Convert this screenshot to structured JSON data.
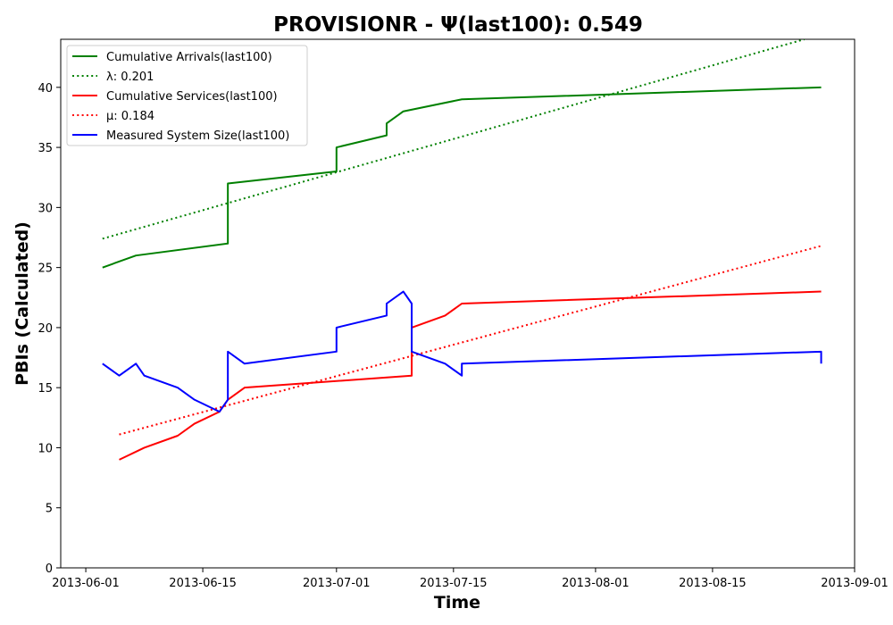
{
  "chart_data": {
    "type": "line",
    "title": "PROVISIONR -  Ψ(last100): 0.549",
    "xlabel": "Time",
    "ylabel": "PBIs (Calculated)",
    "xlim": [
      "2013-05-29",
      "2013-09-01"
    ],
    "ylim": [
      0,
      44
    ],
    "x_ticks": [
      "2013-06-01",
      "2013-06-15",
      "2013-07-01",
      "2013-07-15",
      "2013-08-01",
      "2013-08-15",
      "2013-09-01"
    ],
    "y_ticks": [
      0,
      5,
      10,
      15,
      20,
      25,
      30,
      35,
      40
    ],
    "grid": false,
    "legend_position": "top-left",
    "series": [
      {
        "name": "Cumulative Arrivals(last100)",
        "color": "#008000",
        "style": "solid",
        "points": [
          [
            "2013-06-03",
            25
          ],
          [
            "2013-06-07",
            26
          ],
          [
            "2013-06-18",
            27
          ],
          [
            "2013-06-18",
            28
          ],
          [
            "2013-06-18",
            32
          ],
          [
            "2013-07-01",
            33
          ],
          [
            "2013-07-01",
            35
          ],
          [
            "2013-07-07",
            36
          ],
          [
            "2013-07-07",
            37
          ],
          [
            "2013-07-09",
            38
          ],
          [
            "2013-07-16",
            39
          ],
          [
            "2013-08-28",
            40
          ]
        ]
      },
      {
        "name": "λ: 0.201",
        "color": "#008000",
        "style": "dotted",
        "points": [
          [
            "2013-06-03",
            27.4
          ],
          [
            "2013-08-26",
            44
          ]
        ]
      },
      {
        "name": "Cumulative Services(last100)",
        "color": "#ff0000",
        "style": "solid",
        "points": [
          [
            "2013-06-05",
            9
          ],
          [
            "2013-06-08",
            10
          ],
          [
            "2013-06-12",
            11
          ],
          [
            "2013-06-14",
            12
          ],
          [
            "2013-06-17",
            13
          ],
          [
            "2013-06-18",
            14
          ],
          [
            "2013-06-20",
            15
          ],
          [
            "2013-07-10",
            16
          ],
          [
            "2013-07-10",
            20
          ],
          [
            "2013-07-14",
            21
          ],
          [
            "2013-07-16",
            22
          ],
          [
            "2013-08-28",
            23
          ]
        ]
      },
      {
        "name": "μ: 0.184",
        "color": "#ff0000",
        "style": "dotted",
        "points": [
          [
            "2013-06-05",
            11.1
          ],
          [
            "2013-08-28",
            26.8
          ]
        ]
      },
      {
        "name": "Measured System Size(last100)",
        "color": "#0000ff",
        "style": "solid",
        "points": [
          [
            "2013-06-03",
            17
          ],
          [
            "2013-06-05",
            16
          ],
          [
            "2013-06-07",
            17
          ],
          [
            "2013-06-08",
            16
          ],
          [
            "2013-06-12",
            15
          ],
          [
            "2013-06-14",
            14
          ],
          [
            "2013-06-17",
            13
          ],
          [
            "2013-06-18",
            14
          ],
          [
            "2013-06-18",
            16
          ],
          [
            "2013-06-18",
            15
          ],
          [
            "2013-06-18",
            18
          ],
          [
            "2013-06-20",
            17
          ],
          [
            "2013-07-01",
            18
          ],
          [
            "2013-07-01",
            20
          ],
          [
            "2013-07-07",
            21
          ],
          [
            "2013-07-07",
            22
          ],
          [
            "2013-07-09",
            23
          ],
          [
            "2013-07-10",
            22
          ],
          [
            "2013-07-10",
            18
          ],
          [
            "2013-07-14",
            17
          ],
          [
            "2013-07-16",
            16
          ],
          [
            "2013-07-16",
            17
          ],
          [
            "2013-08-28",
            18
          ],
          [
            "2013-08-28",
            17
          ]
        ]
      }
    ]
  }
}
